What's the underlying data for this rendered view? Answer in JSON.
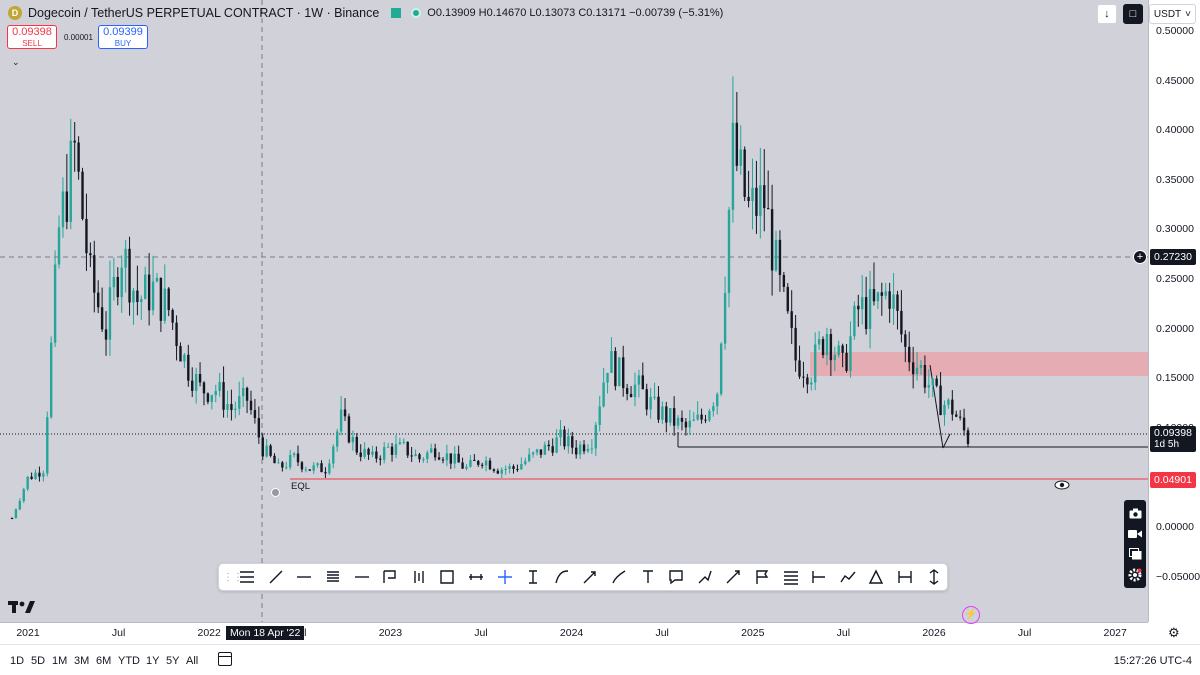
{
  "header": {
    "coin_letter": "D",
    "symbol": "Dogecoin / TetherUS PERPETUAL CONTRACT · 1W · Binance",
    "ohlc": "O0.13909 H0.14670 L0.13073 C0.13171 −0.00739 (−5.31%)"
  },
  "trade": {
    "sell_price": "0.09398",
    "sell_label": "SELL",
    "buy_price": "0.09399",
    "buy_label": "BUY",
    "spread": "0.00001"
  },
  "top_right": {
    "currency": "USDT"
  },
  "price_axis": {
    "ticks": [
      "0.50000",
      "0.45000",
      "0.40000",
      "0.35000",
      "0.30000",
      "0.25000",
      "0.20000",
      "0.15000",
      "0.10000",
      "0.05000",
      "0.00000",
      "−0.05000"
    ],
    "last_price": "0.09398",
    "countdown": "1d 5h",
    "line_price": "0.04901",
    "crosshair_price": "0.27230"
  },
  "time_axis": {
    "ticks": [
      "2021",
      "Jul",
      "2022",
      "Jul",
      "2023",
      "Jul",
      "2024",
      "Jul",
      "2025",
      "Jul",
      "2026",
      "Jul",
      "2027"
    ],
    "crosshair_date": "Mon 18 Apr '22"
  },
  "annotations": {
    "eql": "EQL"
  },
  "bottom_bar": {
    "ranges": [
      "1D",
      "5D",
      "1M",
      "3M",
      "6M",
      "YTD",
      "1Y",
      "5Y",
      "All"
    ],
    "clock": "15:27:26 UTC-4"
  },
  "colors": {
    "up": "#26a69a",
    "down": "#131722",
    "zone": "#e8a7ae",
    "red_line": "#f23645",
    "plot_bg": "#d0d1d9"
  },
  "tools": [
    "horizontal-lines",
    "trend-line",
    "horizontal-line",
    "pitchfork",
    "horizontal-ray",
    "callout",
    "candles",
    "rectangle",
    "range",
    "crosshair",
    "text-cursor",
    "curve",
    "arrow",
    "brush",
    "text",
    "comment",
    "path",
    "arrow-marker",
    "flag",
    "fib",
    "long-position",
    "polyline",
    "triangle",
    "measure",
    "price-range"
  ],
  "chart_data": {
    "type": "candlestick",
    "title": "Dogecoin / TetherUS PERPETUAL CONTRACT · 1W · Binance",
    "ylim": [
      -0.06,
      0.5
    ],
    "x": [
      "2021-01",
      "2021-02",
      "2021-03",
      "2021-04",
      "2021-05",
      "2021-06",
      "2021-07",
      "2021-08",
      "2021-09",
      "2021-10",
      "2021-11",
      "2021-12",
      "2022-01",
      "2022-02",
      "2022-03",
      "2022-04",
      "2022-05",
      "2022-06",
      "2022-07",
      "2022-08",
      "2022-09",
      "2022-10",
      "2022-11",
      "2022-12",
      "2023-01",
      "2023-02",
      "2023-03",
      "2023-04",
      "2023-05",
      "2023-06",
      "2023-07",
      "2023-08",
      "2023-09",
      "2023-10",
      "2023-11",
      "2023-12",
      "2024-01",
      "2024-02",
      "2024-03",
      "2024-04",
      "2024-05",
      "2024-06",
      "2024-07",
      "2024-08",
      "2024-09",
      "2024-10",
      "2024-11",
      "2024-12",
      "2025-01",
      "2025-02",
      "2025-03",
      "2025-04",
      "2025-05",
      "2025-06",
      "2025-07",
      "2025-08",
      "2025-09",
      "2025-10",
      "2025-11",
      "2025-12",
      "2026-01",
      "2026-02"
    ],
    "close": [
      0.01,
      0.05,
      0.06,
      0.3,
      0.38,
      0.25,
      0.2,
      0.28,
      0.23,
      0.24,
      0.22,
      0.17,
      0.14,
      0.14,
      0.12,
      0.13,
      0.08,
      0.06,
      0.07,
      0.06,
      0.06,
      0.11,
      0.08,
      0.07,
      0.08,
      0.08,
      0.07,
      0.08,
      0.07,
      0.06,
      0.07,
      0.06,
      0.06,
      0.07,
      0.08,
      0.09,
      0.08,
      0.09,
      0.17,
      0.15,
      0.14,
      0.12,
      0.11,
      0.1,
      0.11,
      0.14,
      0.38,
      0.32,
      0.33,
      0.24,
      0.17,
      0.16,
      0.2,
      0.16,
      0.22,
      0.22,
      0.24,
      0.18,
      0.16,
      0.13,
      0.12,
      0.09
    ],
    "zone": {
      "from": 0.153,
      "to": 0.175
    },
    "eql_level": 0.049,
    "support_level": 0.08
  }
}
